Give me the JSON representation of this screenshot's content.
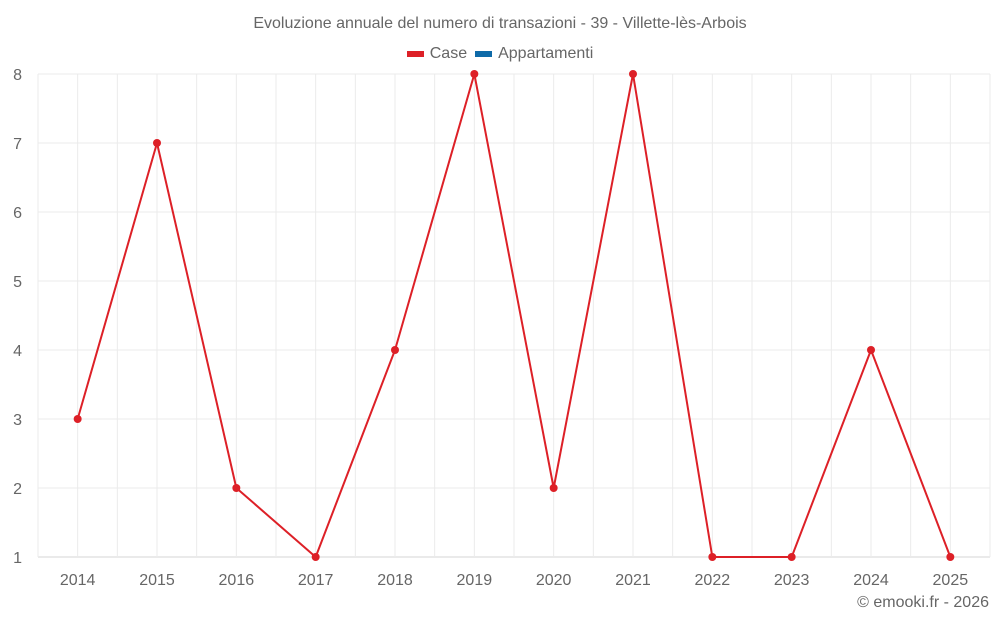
{
  "chart_data": {
    "type": "line",
    "title": "Evoluzione annuale del numero di transazioni - 39 - Villette-lès-Arbois",
    "xlabel": "",
    "ylabel": "",
    "categories": [
      "2014",
      "2015",
      "2016",
      "2017",
      "2018",
      "2019",
      "2020",
      "2021",
      "2022",
      "2023",
      "2024",
      "2025"
    ],
    "series": [
      {
        "name": "Case",
        "color": "#dd2027",
        "values": [
          3,
          7,
          2,
          1,
          4,
          8,
          2,
          8,
          1,
          1,
          4,
          1
        ]
      },
      {
        "name": "Appartamenti",
        "color": "#0e6aa8",
        "values": []
      }
    ],
    "ylim": [
      1,
      8
    ],
    "yticks": [
      "1",
      "2",
      "3",
      "4",
      "5",
      "6",
      "7",
      "8"
    ],
    "grid": true,
    "legend_position": "top"
  },
  "legend": {
    "items": [
      {
        "label": "Case",
        "color": "#dd2027"
      },
      {
        "label": "Appartamenti",
        "color": "#0e6aa8"
      }
    ]
  },
  "credit": "© emooki.fr - 2026"
}
